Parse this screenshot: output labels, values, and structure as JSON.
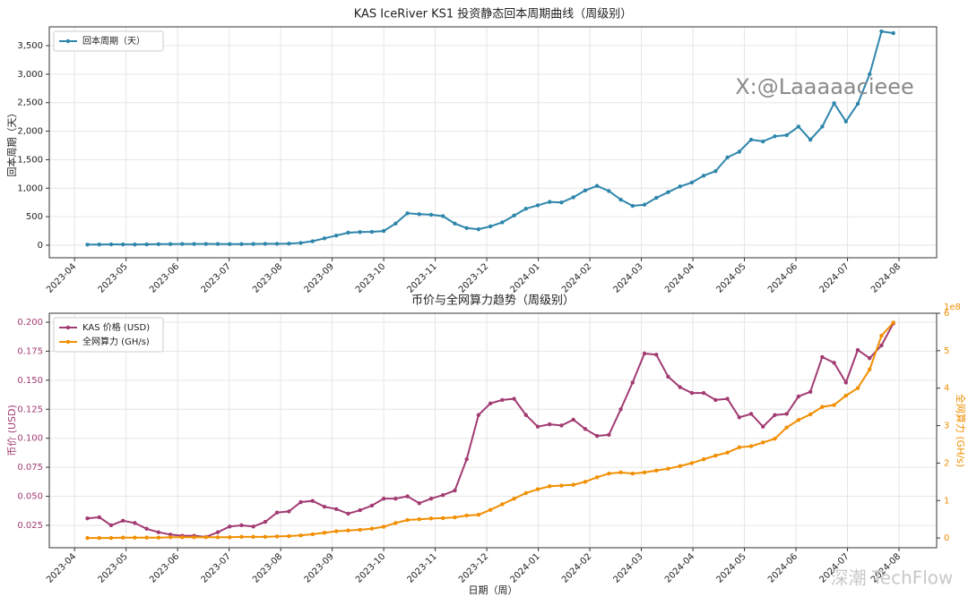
{
  "chart_data": [
    {
      "type": "line",
      "title": "KAS IceRiver KS1 投资静态回本周期曲线（周级别）",
      "ylabel": "回本周期（天）",
      "x": [
        0.25,
        0.48,
        0.71,
        0.94,
        1.17,
        1.4,
        1.63,
        1.86,
        2.09,
        2.32,
        2.55,
        2.78,
        3.01,
        3.24,
        3.47,
        3.7,
        3.93,
        4.16,
        4.39,
        4.62,
        4.85,
        5.08,
        5.31,
        5.54,
        5.77,
        6.0,
        6.23,
        6.46,
        6.69,
        6.92,
        7.15,
        7.38,
        7.61,
        7.84,
        8.07,
        8.3,
        8.53,
        8.76,
        8.99,
        9.22,
        9.45,
        9.68,
        9.91,
        10.14,
        10.37,
        10.6,
        10.83,
        11.06,
        11.29,
        11.52,
        11.75,
        11.98,
        12.21,
        12.44,
        12.67,
        12.9,
        13.13,
        13.36,
        13.59,
        13.82,
        14.05,
        14.28,
        14.51,
        14.74,
        14.97,
        15.2,
        15.43,
        15.66,
        15.89
      ],
      "xlim": [
        -0.49,
        16.73
      ],
      "xticks": [
        {
          "value": 0,
          "label": "2023-04"
        },
        {
          "value": 1,
          "label": "2023-05"
        },
        {
          "value": 2,
          "label": "2023-06"
        },
        {
          "value": 3,
          "label": "2023-07"
        },
        {
          "value": 4,
          "label": "2023-08"
        },
        {
          "value": 5,
          "label": "2023-09"
        },
        {
          "value": 6,
          "label": "2023-10"
        },
        {
          "value": 7,
          "label": "2023-11"
        },
        {
          "value": 8,
          "label": "2023-12"
        },
        {
          "value": 9,
          "label": "2024-01"
        },
        {
          "value": 10,
          "label": "2024-02"
        },
        {
          "value": 11,
          "label": "2024-03"
        },
        {
          "value": 12,
          "label": "2024-04"
        },
        {
          "value": 13,
          "label": "2024-05"
        },
        {
          "value": 14,
          "label": "2024-06"
        },
        {
          "value": 15,
          "label": "2024-07"
        },
        {
          "value": 16,
          "label": "2024-08"
        }
      ],
      "ylim": [
        -220,
        3830
      ],
      "yticks": [
        0,
        500,
        {
          "value": 1000,
          "label": "1,000"
        },
        {
          "value": 1500,
          "label": "1,500"
        },
        {
          "value": 2000,
          "label": "2,000"
        },
        {
          "value": 2500,
          "label": "2,500"
        },
        {
          "value": 3000,
          "label": "3,000"
        },
        {
          "value": 3500,
          "label": "3,500"
        }
      ],
      "grid": true,
      "legend": "upper-left",
      "series": [
        {
          "name": "回本周期（天）",
          "color": "#2e86ab",
          "values": [
            10,
            12,
            15,
            14,
            13,
            15,
            18,
            20,
            22,
            22,
            23,
            22,
            20,
            20,
            22,
            25,
            25,
            28,
            40,
            70,
            120,
            170,
            220,
            230,
            235,
            250,
            380,
            560,
            545,
            535,
            510,
            380,
            300,
            280,
            330,
            400,
            520,
            640,
            700,
            760,
            750,
            840,
            960,
            1040,
            950,
            800,
            690,
            710,
            830,
            930,
            1030,
            1100,
            1220,
            1300,
            1540,
            1640,
            1850,
            1820,
            1910,
            1930,
            2080,
            1850,
            2080,
            2490,
            2170,
            2480,
            3000,
            3750,
            3720
          ]
        }
      ]
    },
    {
      "type": "line",
      "title": "币价与全网算力趋势（周级别）",
      "xlabel": "日期（周）",
      "ylabel": "币价 (USD)",
      "y2label": "全网算力 (GH/s)",
      "y2offset": "1e8",
      "x": [
        0.25,
        0.48,
        0.71,
        0.94,
        1.17,
        1.4,
        1.63,
        1.86,
        2.09,
        2.32,
        2.55,
        2.78,
        3.01,
        3.24,
        3.47,
        3.7,
        3.93,
        4.16,
        4.39,
        4.62,
        4.85,
        5.08,
        5.31,
        5.54,
        5.77,
        6.0,
        6.23,
        6.46,
        6.69,
        6.92,
        7.15,
        7.38,
        7.61,
        7.84,
        8.07,
        8.3,
        8.53,
        8.76,
        8.99,
        9.22,
        9.45,
        9.68,
        9.91,
        10.14,
        10.37,
        10.6,
        10.83,
        11.06,
        11.29,
        11.52,
        11.75,
        11.98,
        12.21,
        12.44,
        12.67,
        12.9,
        13.13,
        13.36,
        13.59,
        13.82,
        14.05,
        14.28,
        14.51,
        14.74,
        14.97,
        15.2,
        15.43,
        15.66,
        15.89
      ],
      "xlim": [
        -0.49,
        16.73
      ],
      "xticks": [
        {
          "value": 0,
          "label": "2023-04"
        },
        {
          "value": 1,
          "label": "2023-05"
        },
        {
          "value": 2,
          "label": "2023-06"
        },
        {
          "value": 3,
          "label": "2023-07"
        },
        {
          "value": 4,
          "label": "2023-08"
        },
        {
          "value": 5,
          "label": "2023-09"
        },
        {
          "value": 6,
          "label": "2023-10"
        },
        {
          "value": 7,
          "label": "2023-11"
        },
        {
          "value": 8,
          "label": "2023-12"
        },
        {
          "value": 9,
          "label": "2024-01"
        },
        {
          "value": 10,
          "label": "2024-02"
        },
        {
          "value": 11,
          "label": "2024-03"
        },
        {
          "value": 12,
          "label": "2024-04"
        },
        {
          "value": 13,
          "label": "2024-05"
        },
        {
          "value": 14,
          "label": "2024-06"
        },
        {
          "value": 15,
          "label": "2024-07"
        },
        {
          "value": 16,
          "label": "2024-08"
        }
      ],
      "ylim": [
        0.0057,
        0.2077
      ],
      "yticks": [
        0.025,
        {
          "value": 0.05,
          "label": "0.050"
        },
        0.075,
        {
          "value": 0.1,
          "label": "0.100"
        },
        0.125,
        {
          "value": 0.15,
          "label": "0.150"
        },
        0.175,
        {
          "value": 0.2,
          "label": "0.200"
        }
      ],
      "y2lim": [
        -0.26,
        6.0
      ],
      "y2ticks": [
        0,
        1,
        2,
        3,
        4,
        5,
        6
      ],
      "grid": true,
      "legend": "upper-left",
      "series": [
        {
          "name": "KAS 价格 (USD)",
          "color": "#a23b72",
          "values": [
            0.031,
            0.032,
            0.025,
            0.029,
            0.027,
            0.022,
            0.019,
            0.017,
            0.016,
            0.016,
            0.015,
            0.019,
            0.024,
            0.025,
            0.024,
            0.028,
            0.036,
            0.037,
            0.045,
            0.046,
            0.041,
            0.039,
            0.035,
            0.038,
            0.042,
            0.048,
            0.048,
            0.05,
            0.044,
            0.048,
            0.051,
            0.055,
            0.082,
            0.12,
            0.13,
            0.133,
            0.134,
            0.12,
            0.11,
            0.112,
            0.111,
            0.116,
            0.108,
            0.102,
            0.103,
            0.125,
            0.148,
            0.173,
            0.172,
            0.153,
            0.144,
            0.139,
            0.139,
            0.133,
            0.134,
            0.118,
            0.121,
            0.11,
            0.12,
            0.121,
            0.136,
            0.14,
            0.17,
            0.165,
            0.148,
            0.176,
            0.169,
            0.18,
            0.199
          ]
        },
        {
          "name": "全网算力 (GH/s)",
          "color": "#f18f01",
          "axis": "y2",
          "values": [
            0.0,
            0.0,
            0.0,
            0.01,
            0.01,
            0.01,
            0.01,
            0.02,
            0.02,
            0.02,
            0.02,
            0.02,
            0.02,
            0.03,
            0.03,
            0.03,
            0.04,
            0.05,
            0.07,
            0.1,
            0.14,
            0.18,
            0.2,
            0.22,
            0.25,
            0.3,
            0.4,
            0.48,
            0.5,
            0.52,
            0.53,
            0.55,
            0.6,
            0.62,
            0.75,
            0.9,
            1.05,
            1.2,
            1.3,
            1.38,
            1.4,
            1.42,
            1.5,
            1.62,
            1.72,
            1.75,
            1.72,
            1.75,
            1.8,
            1.85,
            1.92,
            2.0,
            2.1,
            2.2,
            2.28,
            2.42,
            2.45,
            2.55,
            2.65,
            2.95,
            3.15,
            3.3,
            3.5,
            3.55,
            3.8,
            4.0,
            4.5,
            5.4,
            5.75
          ]
        }
      ]
    }
  ],
  "watermarks": [
    "X:@Laaaaacieee",
    "深潮 TechFlow"
  ]
}
